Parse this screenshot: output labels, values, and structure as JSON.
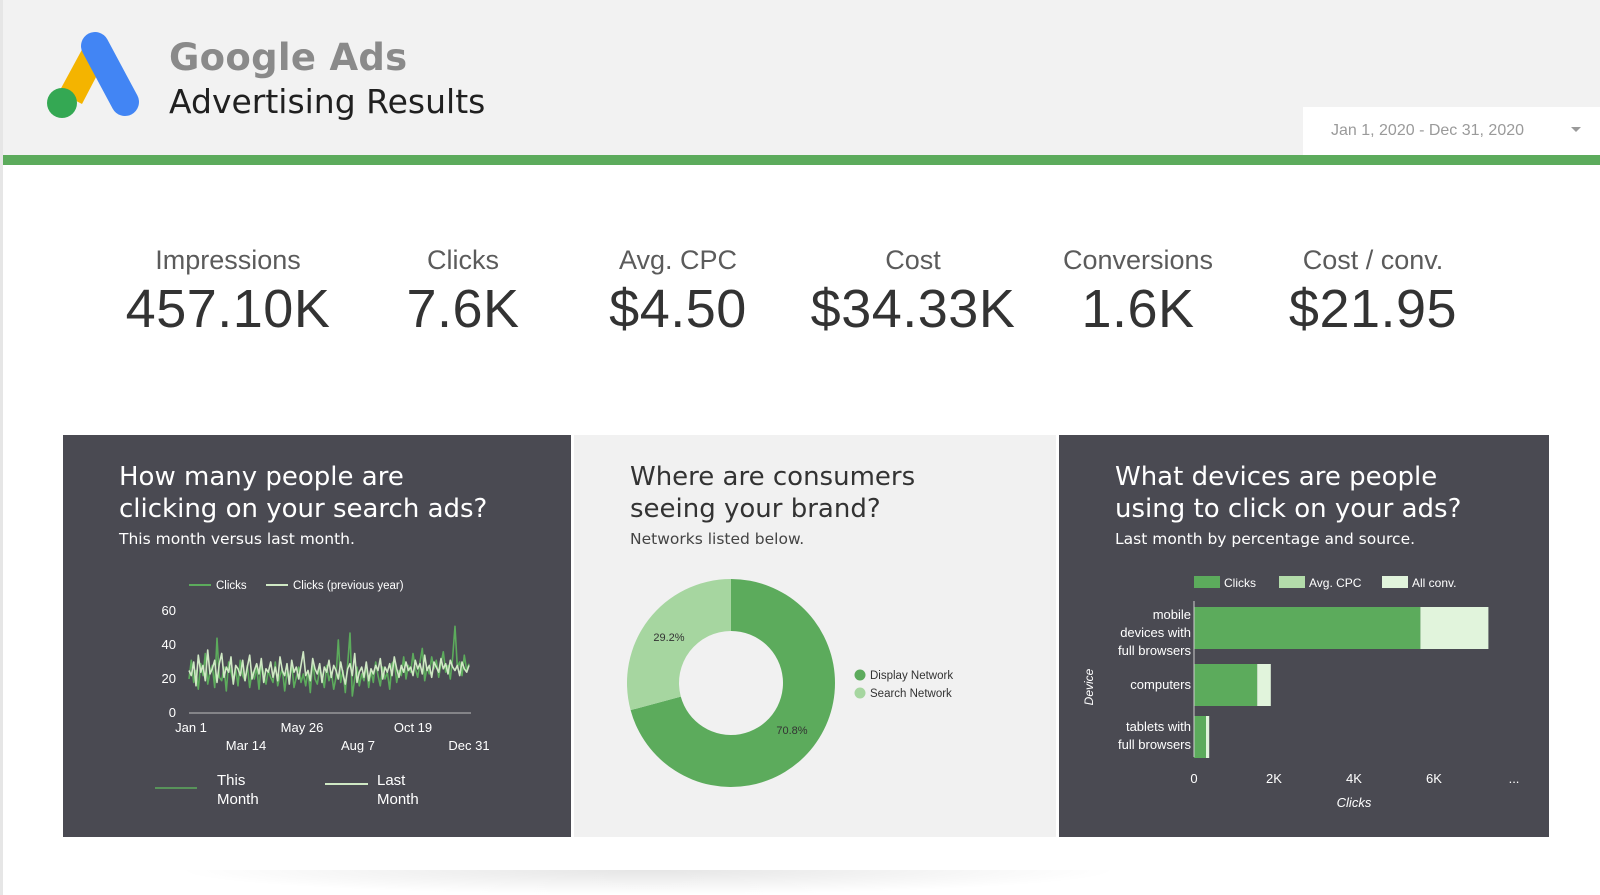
{
  "header": {
    "brand": "Google Ads",
    "subtitle": "Advertising Results",
    "date_range": "Jan 1, 2020 - Dec 31, 2020",
    "colors": {
      "accent_green": "#5cab5c",
      "logo_yellow": "#f4b400",
      "logo_blue": "#4285f4",
      "logo_green": "#34a853"
    }
  },
  "kpis": [
    {
      "label": "Impressions",
      "value": "457.10K"
    },
    {
      "label": "Clicks",
      "value": "7.6K"
    },
    {
      "label": "Avg. CPC",
      "value": "$4.50"
    },
    {
      "label": "Cost",
      "value": "$34.33K"
    },
    {
      "label": "Conversions",
      "value": "1.6K"
    },
    {
      "label": "Cost / conv.",
      "value": "$21.95"
    }
  ],
  "panels": {
    "clicks": {
      "title_line1": "How many people are",
      "title_line2": "clicking on your search ads?",
      "subtitle": "This month versus last month.",
      "legend_bottom": {
        "this_line1": "This",
        "this_line2": "Month",
        "last_line1": "Last",
        "last_line2": "Month"
      }
    },
    "networks": {
      "title_line1": "Where are consumers",
      "title_line2": "seeing your brand?",
      "subtitle": "Networks listed below."
    },
    "devices": {
      "title_line1": "What devices are people",
      "title_line2": "using to click on your ads?",
      "subtitle": "Last month by percentage and source."
    }
  },
  "chart_data": [
    {
      "type": "line",
      "title": "How many people are clicking on your search ads?",
      "legend": [
        "Clicks",
        "Clicks (previous year)"
      ],
      "ylim": [
        0,
        60
      ],
      "y_ticks": [
        "0",
        "20",
        "40",
        "60"
      ],
      "x_ticks_top": [
        "Jan 1",
        "May 26",
        "Oct 19"
      ],
      "x_ticks_bottom": [
        "Mar 14",
        "Aug 7",
        "Dec 31"
      ],
      "colors": {
        "current": "#5cab5c",
        "previous": "#cfe8c4"
      },
      "series": [
        {
          "name": "Clicks",
          "values": [
            20,
            31,
            18,
            25,
            14,
            29,
            22,
            35,
            17,
            24,
            28,
            15,
            44,
            21,
            19,
            27,
            13,
            30,
            24,
            18,
            26,
            16,
            31,
            22,
            19,
            28,
            15,
            24,
            20,
            27,
            14,
            29,
            23,
            17,
            25,
            21,
            18,
            30,
            16,
            22,
            26,
            13,
            24,
            20,
            29,
            15,
            21,
            27,
            18,
            23,
            16,
            25,
            12,
            30,
            20,
            17,
            26,
            22,
            15,
            28,
            19,
            24,
            14,
            21,
            43,
            18,
            25,
            12,
            29,
            47,
            10,
            20,
            27,
            16,
            23,
            19,
            28,
            15,
            25,
            18,
            30,
            22,
            16,
            27,
            20,
            24,
            14,
            29,
            31,
            18,
            25,
            22,
            33,
            20,
            28,
            24,
            35,
            26,
            21,
            30,
            38,
            19,
            27,
            23,
            33,
            26,
            31,
            21,
            29,
            36,
            24,
            28,
            20,
            33,
            51,
            27,
            30,
            22,
            34,
            25,
            29
          ]
        },
        {
          "name": "Clicks (previous year)",
          "values": [
            25,
            22,
            30,
            16,
            34,
            24,
            28,
            19,
            37,
            23,
            26,
            31,
            18,
            29,
            35,
            21,
            27,
            24,
            33,
            17,
            28,
            26,
            22,
            31,
            19,
            27,
            34,
            20,
            25,
            29,
            23,
            32,
            18,
            26,
            24,
            30,
            21,
            27,
            19,
            33,
            25,
            22,
            29,
            17,
            31,
            24,
            27,
            20,
            28,
            36,
            22,
            25,
            19,
            32,
            26,
            23,
            29,
            18,
            27,
            24,
            31,
            21,
            28,
            25,
            20,
            30,
            23,
            17,
            26,
            29,
            22,
            35,
            18,
            24,
            27,
            21,
            30,
            19,
            26,
            23,
            28,
            25,
            32,
            20,
            27,
            24,
            29,
            22,
            33,
            26,
            21,
            28,
            24,
            30,
            25,
            27,
            22,
            31,
            26,
            29,
            23,
            34,
            25,
            28,
            21,
            30,
            27,
            24,
            32,
            26,
            29,
            23,
            31,
            27,
            25,
            28,
            22,
            30,
            26,
            24,
            28
          ]
        }
      ]
    },
    {
      "type": "pie",
      "title": "Where are consumers seeing your brand?",
      "categories": [
        "Display Network",
        "Search Network"
      ],
      "values": [
        70.8,
        29.2
      ],
      "labels": [
        "70.8%",
        "29.2%"
      ],
      "colors": [
        "#5cab5c",
        "#a6d6a0"
      ],
      "legend": "right"
    },
    {
      "type": "bar",
      "orientation": "horizontal",
      "stacked": true,
      "title": "What devices are people using to click on your ads?",
      "ylabel": "Device",
      "xlabel": "Clicks",
      "categories": [
        [
          "mobile",
          "devices with",
          "full browsers"
        ],
        [
          "computers"
        ],
        [
          "tablets with",
          "full browsers"
        ]
      ],
      "x_ticks": [
        "0",
        "2K",
        "4K",
        "6K",
        "..."
      ],
      "xlim": [
        0,
        8000
      ],
      "series": [
        {
          "name": "Clicks",
          "color": "#5cab5c",
          "values": [
            5660,
            1580,
            300
          ]
        },
        {
          "name": "Avg. CPC",
          "color": "#b3dcaa",
          "values": [
            0,
            0,
            0
          ]
        },
        {
          "name": "All conv.",
          "color": "#e1f4dc",
          "values": [
            1700,
            340,
            80
          ]
        }
      ]
    }
  ]
}
